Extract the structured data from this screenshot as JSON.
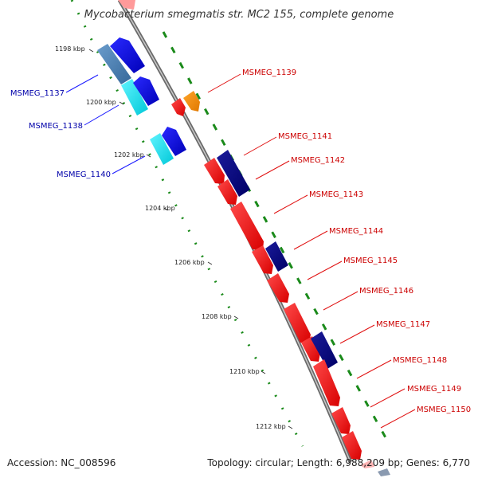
{
  "title": "Mycobacterium smegmatis str. MC2 155, complete genome",
  "footer": {
    "accession": "Accession: NC_008596",
    "topology": "Topology: circular; Length: 6,988,209 bp; Genes: 6,770"
  },
  "ticks": [
    {
      "label": "1198 kbp",
      "kbp": 1198
    },
    {
      "label": "1200 kbp",
      "kbp": 1200
    },
    {
      "label": "1202 kbp",
      "kbp": 1202
    },
    {
      "label": "1204 kbp",
      "kbp": 1204
    },
    {
      "label": "1206 kbp",
      "kbp": 1206
    },
    {
      "label": "1208 kbp",
      "kbp": 1208
    },
    {
      "label": "1210 kbp",
      "kbp": 1210
    },
    {
      "label": "1212 kbp",
      "kbp": 1212
    }
  ],
  "gene_labels": [
    {
      "name": "MSMEG_1137",
      "strand": "reverse",
      "color": "#0000aa"
    },
    {
      "name": "MSMEG_1138",
      "strand": "reverse",
      "color": "#0000aa"
    },
    {
      "name": "MSMEG_1140",
      "strand": "reverse",
      "color": "#0000aa"
    },
    {
      "name": "MSMEG_1139",
      "strand": "forward",
      "color": "#cc0000"
    },
    {
      "name": "MSMEG_1141",
      "strand": "forward",
      "color": "#cc0000"
    },
    {
      "name": "MSMEG_1142",
      "strand": "forward",
      "color": "#cc0000"
    },
    {
      "name": "MSMEG_1143",
      "strand": "forward",
      "color": "#cc0000"
    },
    {
      "name": "MSMEG_1144",
      "strand": "forward",
      "color": "#cc0000"
    },
    {
      "name": "MSMEG_1145",
      "strand": "forward",
      "color": "#cc0000"
    },
    {
      "name": "MSMEG_1146",
      "strand": "forward",
      "color": "#cc0000"
    },
    {
      "name": "MSMEG_1147",
      "strand": "forward",
      "color": "#cc0000"
    },
    {
      "name": "MSMEG_1148",
      "strand": "forward",
      "color": "#cc0000"
    },
    {
      "name": "MSMEG_1149",
      "strand": "forward",
      "color": "#cc0000"
    },
    {
      "name": "MSMEG_1150",
      "strand": "forward",
      "color": "#cc0000"
    }
  ],
  "colors": {
    "backbone": "#8c8c8c",
    "gc_skew_dots": "#1a8a1a",
    "forward_cds": "#ff0000",
    "forward_other": "#ff8c00",
    "reverse_cds": "#0000dd",
    "reverse_cyan": "#00e0ee",
    "dark_navy": "#000080",
    "steel_blue": "#4a7fb0"
  }
}
